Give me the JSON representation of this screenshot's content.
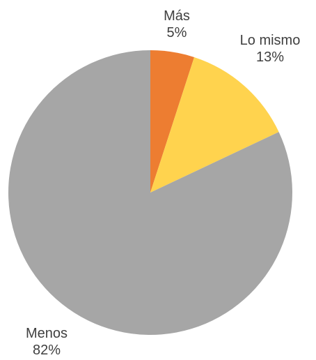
{
  "chart_data": {
    "type": "pie",
    "slices": [
      {
        "label": "Más",
        "value": 5,
        "value_label": "5%",
        "color": "#ed7d31"
      },
      {
        "label": "Lo mismo",
        "value": 13,
        "value_label": "13%",
        "color": "#ffd34e"
      },
      {
        "label": "Menos",
        "value": 82,
        "value_label": "82%",
        "color": "#a6a6a6"
      }
    ],
    "start_angle": "12 o'clock",
    "direction": "clockwise",
    "legend": "none"
  }
}
